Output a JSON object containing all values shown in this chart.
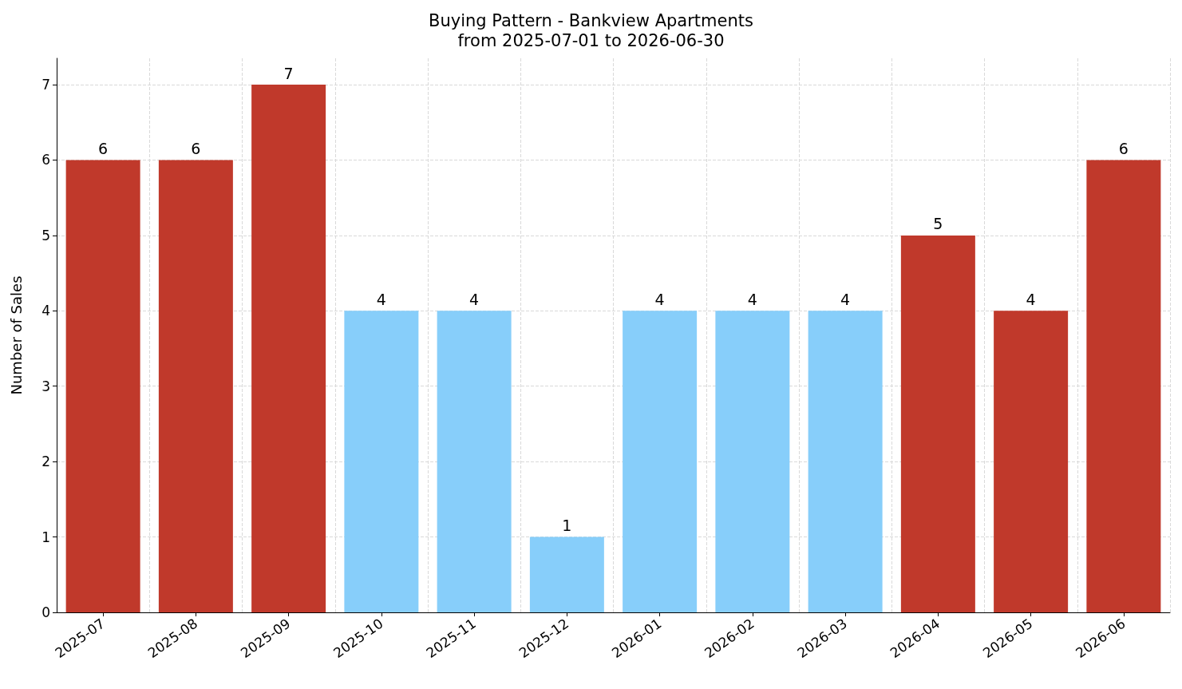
{
  "chart_data": {
    "type": "bar",
    "title": "Buying Pattern - Bankview Apartments",
    "subtitle": "from 2025-07-01 to 2026-06-30",
    "ylabel": "Number of Sales",
    "categories": [
      "2025-07",
      "2025-08",
      "2025-09",
      "2025-10",
      "2025-11",
      "2025-12",
      "2026-01",
      "2026-02",
      "2026-03",
      "2026-04",
      "2026-05",
      "2026-06"
    ],
    "values": [
      6,
      6,
      7,
      4,
      4,
      1,
      4,
      4,
      4,
      5,
      4,
      6
    ],
    "colors": [
      "#c0392b",
      "#c0392b",
      "#c0392b",
      "#87cefa",
      "#87cefa",
      "#87cefa",
      "#87cefa",
      "#87cefa",
      "#87cefa",
      "#c0392b",
      "#c0392b",
      "#c0392b"
    ],
    "ylim": [
      0,
      7.35
    ],
    "yticks": [
      0,
      1,
      2,
      3,
      4,
      5,
      6,
      7
    ],
    "grid": true,
    "data_labels": true
  }
}
